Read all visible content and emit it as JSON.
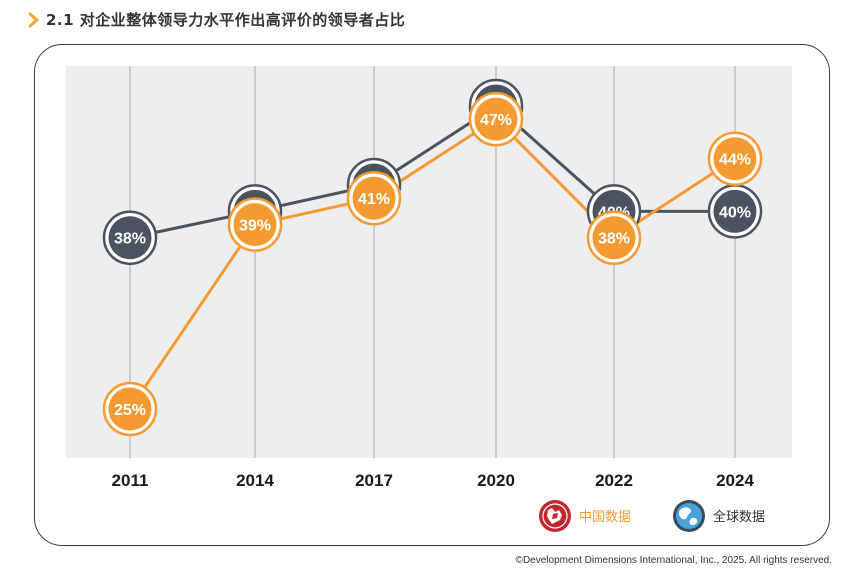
{
  "header": {
    "title": "2.1 对企业整体领导力水平作出高评价的领导者占比"
  },
  "colors": {
    "dark": "#4a5460",
    "orange": "#f59a30",
    "plot_bg": "#eceeef",
    "grid": "#a6a8aa",
    "chevron": "#f5a623"
  },
  "chart_data": {
    "type": "line",
    "categories": [
      "2011",
      "2014",
      "2017",
      "2020",
      "2022",
      "2024"
    ],
    "ylim": [
      20,
      52
    ],
    "series": [
      {
        "name": "全球数据",
        "values": [
          38,
          40,
          42,
          48,
          40,
          40
        ],
        "labels": [
          "38%",
          "40%",
          "42%",
          "48%",
          "40%",
          "40%"
        ],
        "color": "#4a5460",
        "icon": "globe-icon"
      },
      {
        "name": "中国数据",
        "values": [
          25,
          39,
          41,
          47,
          38,
          44
        ],
        "labels": [
          "25%",
          "39%",
          "41%",
          "47%",
          "38%",
          "44%"
        ],
        "color": "#f59a30",
        "icon": "china-icon"
      }
    ],
    "legend_position": "bottom-right",
    "grid": "vertical"
  },
  "footer": {
    "copyright": "©Development Dimensions International, Inc., 2025. All rights reserved."
  }
}
